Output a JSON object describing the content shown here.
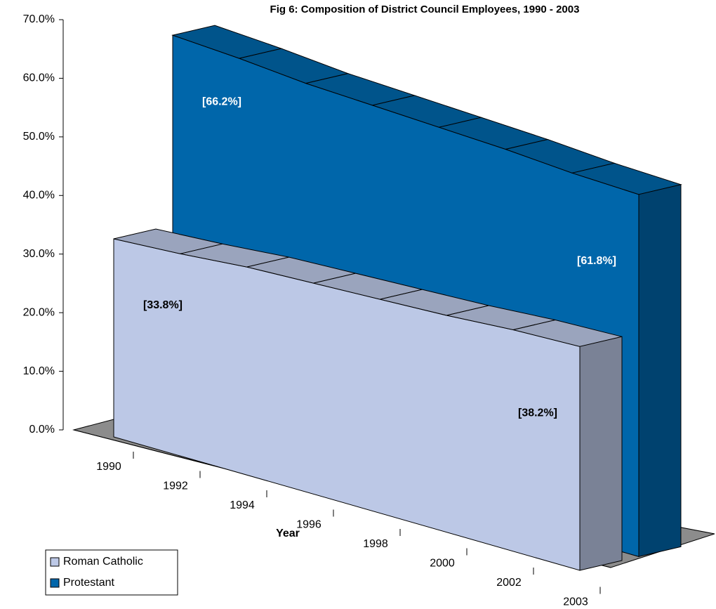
{
  "chart_data": {
    "type": "area3d",
    "title": "Fig 6: Composition of District Council Employees, 1990 - 2003",
    "x_label": "Year",
    "categories": [
      "1990",
      "1992",
      "1994",
      "1996",
      "1998",
      "2000",
      "2002",
      "2003"
    ],
    "series": [
      {
        "name": "Roman Catholic",
        "color": "#bcc8e6",
        "values": [
          33.8,
          34.5,
          35.5,
          36.0,
          36.5,
          37.0,
          37.8,
          38.2
        ],
        "value_labels": [
          "[33.8%]",
          null,
          null,
          null,
          null,
          null,
          null,
          "[38.2%]"
        ]
      },
      {
        "name": "Protestant",
        "color": "#0066aa",
        "values": [
          66.2,
          65.5,
          64.5,
          64.0,
          63.5,
          63.0,
          62.2,
          61.8
        ],
        "value_labels": [
          "[66.2%]",
          null,
          null,
          null,
          null,
          null,
          null,
          "[61.8%]"
        ]
      }
    ],
    "ylim": [
      0,
      70
    ],
    "yticks": [
      {
        "value": 0,
        "label": "0.0%"
      },
      {
        "value": 10,
        "label": "10.0%"
      },
      {
        "value": 20,
        "label": "20.0%"
      },
      {
        "value": 30,
        "label": "30.0%"
      },
      {
        "value": 40,
        "label": "40.0%"
      },
      {
        "value": 50,
        "label": "50.0%"
      },
      {
        "value": 60,
        "label": "60.0%"
      },
      {
        "value": 70,
        "label": "70.0%"
      }
    ],
    "legend": "bottom-left"
  }
}
